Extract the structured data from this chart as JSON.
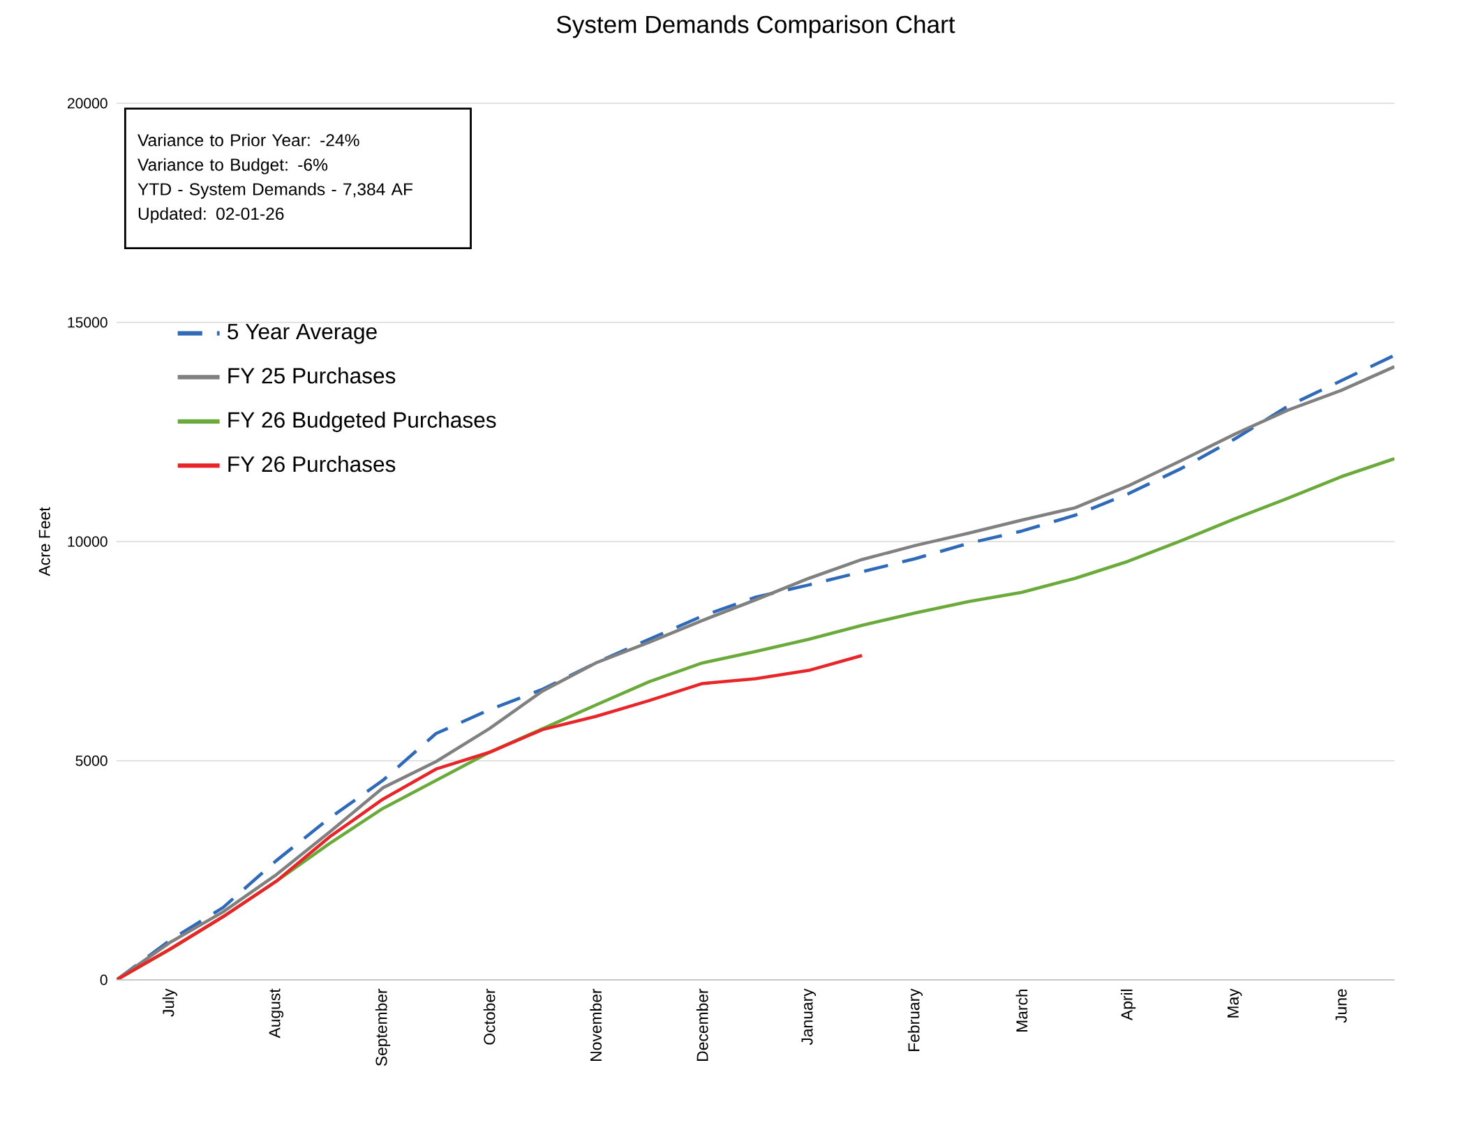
{
  "chart_data": {
    "type": "line",
    "title": "System Demands Comparison Chart",
    "ylabel": "Acre Feet",
    "categories": [
      null,
      "July",
      null,
      "August",
      null,
      "September",
      null,
      "October",
      null,
      "November",
      null,
      "December",
      null,
      "January",
      null,
      "February",
      null,
      "March",
      null,
      "April",
      null,
      "May",
      null,
      "June",
      null
    ],
    "ylim": [
      0,
      20000
    ],
    "yticks": [
      0,
      5000,
      10000,
      15000,
      20000
    ],
    "grid": "y",
    "legend": "top left",
    "marker": "none",
    "series": [
      {
        "name": "5 Year Average",
        "color": "#2e6ab8",
        "line_style": "dashed",
        "values": [
          0,
          900,
          1650,
          2720,
          3690,
          4550,
          5620,
          6160,
          6630,
          7230,
          7770,
          8300,
          8730,
          9010,
          9310,
          9610,
          9960,
          10240,
          10600,
          11090,
          11670,
          12340,
          13090,
          13670,
          14250
        ]
      },
      {
        "name": "FY 25 Purchases",
        "color": "#808080",
        "line_style": "solid",
        "values": [
          0,
          850,
          1550,
          2400,
          3370,
          4380,
          4980,
          5730,
          6590,
          7230,
          7700,
          8200,
          8670,
          9160,
          9590,
          9910,
          10190,
          10490,
          10770,
          11270,
          11850,
          12450,
          13000,
          13450,
          13990
        ]
      },
      {
        "name": "FY 26 Budgeted Purchases",
        "color": "#6aaa3a",
        "line_style": "solid",
        "values": [
          0,
          690,
          1440,
          2250,
          3110,
          3910,
          4550,
          5190,
          5730,
          6270,
          6800,
          7230,
          7490,
          7770,
          8090,
          8370,
          8630,
          8840,
          9160,
          9550,
          10020,
          10520,
          10990,
          11480,
          11890
        ]
      },
      {
        "name": "FY 26 Purchases",
        "color": "#e8262a",
        "line_style": "solid",
        "values": [
          0,
          700,
          1440,
          2250,
          3260,
          4120,
          4810,
          5190,
          5710,
          6010,
          6370,
          6760,
          6870,
          7060,
          7400,
          null,
          null,
          null,
          null,
          null,
          null,
          null,
          null,
          null,
          null
        ]
      }
    ],
    "annotations": [
      "Variance to Prior Year: -24%",
      "Variance to Budget: -6%",
      "YTD - System Demands - 7,384 AF",
      "Updated: 02-01-26"
    ]
  }
}
